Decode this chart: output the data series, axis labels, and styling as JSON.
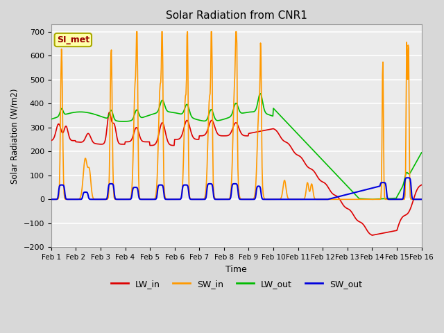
{
  "title": "Solar Radiation from CNR1",
  "xlabel": "Time",
  "ylabel": "Solar Radiation (W/m2)",
  "ylim": [
    -200,
    730
  ],
  "yticks": [
    -200,
    -100,
    0,
    100,
    200,
    300,
    400,
    500,
    600,
    700
  ],
  "x_labels": [
    "Feb 1",
    "Feb 2",
    "Feb 3",
    "Feb 4",
    "Feb 5",
    "Feb 6",
    "Feb 7",
    "Feb 8",
    "Feb 9",
    "Feb 10",
    "Feb 11",
    "Feb 12",
    "Feb 13",
    "Feb 14",
    "Feb 15",
    "Feb 16"
  ],
  "colors": {
    "LW_in": "#dd0000",
    "SW_in": "#ff9900",
    "LW_out": "#00bb00",
    "SW_out": "#0000dd"
  },
  "annotation_text": "SI_met",
  "annotation_color": "#990000",
  "annotation_bg": "#ffffaa",
  "annotation_border": "#aaaa00",
  "bg_color": "#d8d8d8",
  "plot_bg": "#ebebeb",
  "grid_color": "white",
  "legend_items": [
    "LW_in",
    "SW_in",
    "LW_out",
    "SW_out"
  ]
}
